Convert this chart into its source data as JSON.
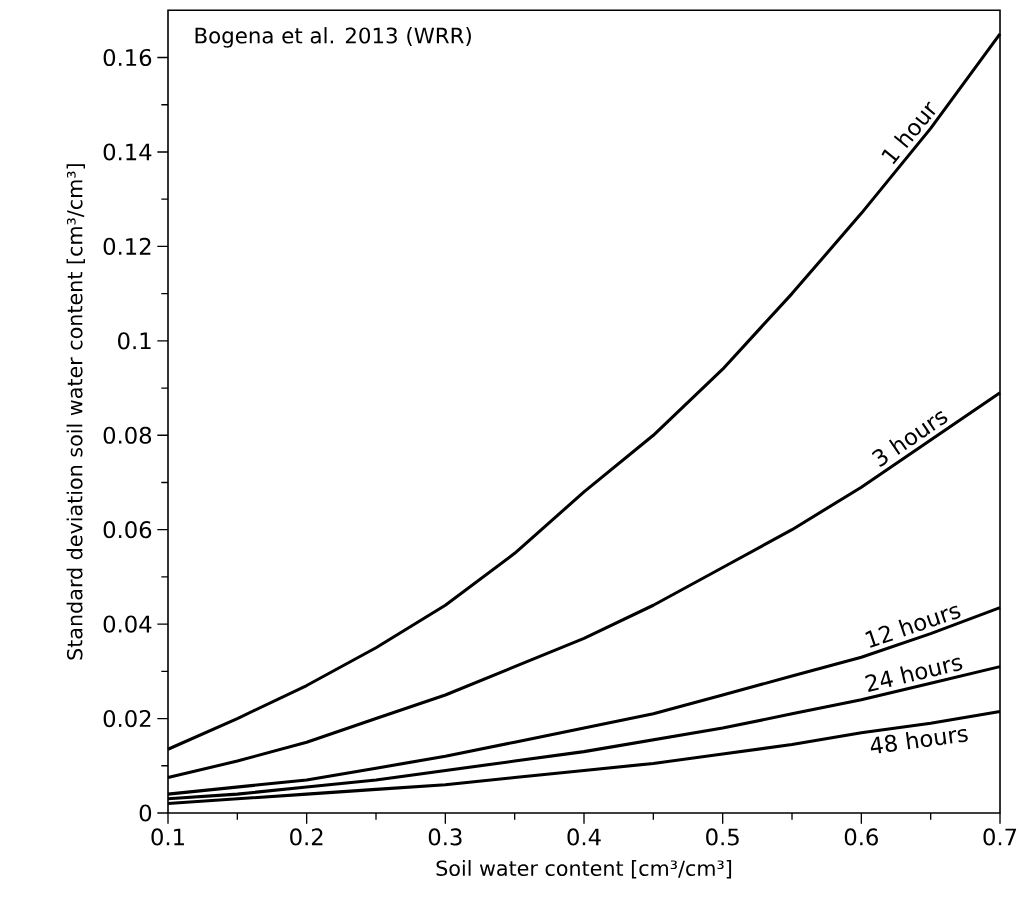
{
  "chart_data": {
    "type": "line",
    "xlabel": "Soil water content [cm³/cm³]",
    "ylabel": "Standard deviation soil water content [cm³/cm³]",
    "annotations": [
      "Bogena et al. 2013 (WRR)"
    ],
    "x": [
      0.1,
      0.15,
      0.2,
      0.25,
      0.3,
      0.35,
      0.4,
      0.45,
      0.5,
      0.55,
      0.6,
      0.65,
      0.7
    ],
    "series": [
      {
        "name": "1 hour",
        "color": "#000000",
        "values": [
          0.0135,
          0.02,
          0.027,
          0.035,
          0.044,
          0.055,
          0.068,
          0.08,
          0.094,
          0.11,
          0.127,
          0.145,
          0.165
        ]
      },
      {
        "name": "3 hours",
        "color": "#000000",
        "values": [
          0.0075,
          0.011,
          0.015,
          0.02,
          0.025,
          0.031,
          0.037,
          0.044,
          0.052,
          0.06,
          0.069,
          0.079,
          0.089
        ]
      },
      {
        "name": "12 hours",
        "color": "#000000",
        "values": [
          0.004,
          0.0055,
          0.007,
          0.0095,
          0.012,
          0.015,
          0.018,
          0.021,
          0.025,
          0.029,
          0.033,
          0.038,
          0.0435
        ]
      },
      {
        "name": "24 hours",
        "color": "#000000",
        "values": [
          0.003,
          0.004,
          0.0055,
          0.007,
          0.009,
          0.011,
          0.013,
          0.0155,
          0.018,
          0.021,
          0.024,
          0.0275,
          0.031
        ]
      },
      {
        "name": "48 hours",
        "color": "#000000",
        "values": [
          0.002,
          0.003,
          0.004,
          0.005,
          0.006,
          0.0075,
          0.009,
          0.0105,
          0.0125,
          0.0145,
          0.017,
          0.019,
          0.0215
        ]
      }
    ],
    "xlim": [
      0.1,
      0.7
    ],
    "xticks": [
      0.1,
      0.2,
      0.3,
      0.4,
      0.5,
      0.6,
      0.7
    ],
    "ylim": [
      0,
      0.17
    ],
    "yticks": [
      0,
      0.02,
      0.04,
      0.06,
      0.08,
      0.1,
      0.12,
      0.14,
      0.16
    ],
    "grid": false,
    "legend": false,
    "marker": "none",
    "line_style": "solid"
  }
}
